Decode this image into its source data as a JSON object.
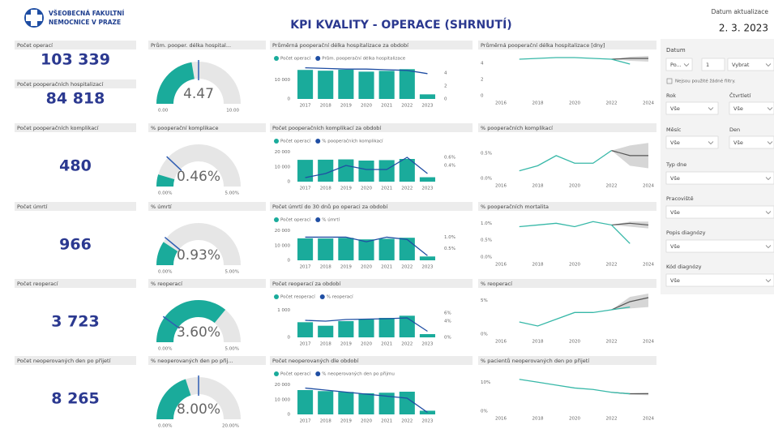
{
  "header": {
    "logo": [
      "VŠEOBECNÁ FAKULTNÍ",
      "NEMOCNICE V PRAZE"
    ],
    "title": "KPI KVALITY - OPERACE (SHRNUTÍ)",
    "update_label": "Datum aktualizace",
    "update_date": "2. 3. 2023"
  },
  "rows": [
    {
      "cards": [
        {
          "label": "Počet operací",
          "value": "103 339"
        },
        {
          "label": "Počet pooperačních hospitalizací",
          "value": "84 818"
        }
      ],
      "gauge": {
        "type": "gauge",
        "title": "Prům. pooper. délka hospital...",
        "value": 4.47,
        "value_label": "4.47",
        "target": 5,
        "min": {
          "value": 0,
          "label": "0.00"
        },
        "max": {
          "value": 10,
          "label": "10.00"
        },
        "color": "#1aab9b",
        "target_color": "#2f5db3"
      },
      "combo": {
        "type": "bar_line",
        "title": "Průměrná pooperační délka hospitalizace za období",
        "categories": [
          "2017",
          "2018",
          "2019",
          "2020",
          "2021",
          "2022",
          "2023"
        ],
        "series": [
          {
            "name": "Počet operací",
            "color": "#1aab9b",
            "values": [
              15200,
              14800,
              15300,
              14300,
              14700,
              15600,
              2400
            ]
          },
          {
            "name": "Prům. pooperační délka hospitalizace",
            "color": "#1f4ea3",
            "axis": "y2",
            "values": [
              4.8,
              4.7,
              4.6,
              4.6,
              4.5,
              4.4,
              3.9
            ]
          }
        ],
        "ylim": [
          0,
          17000
        ],
        "yticks": [
          0,
          {
            "value": 10000,
            "label": "10 000"
          }
        ],
        "y2lim": [
          0,
          5
        ],
        "y2ticks": [
          0,
          2,
          4
        ]
      },
      "trend": {
        "type": "line",
        "title": "Průměrná pooperační délka hospitalizace [dny]",
        "xlim": [
          2016,
          2024
        ],
        "xticks": [
          2016,
          2018,
          2020,
          2022,
          2024
        ],
        "ylim": [
          0,
          5
        ],
        "yticks": [
          0,
          2,
          4
        ],
        "color": "#37b8a8",
        "x": [
          2017,
          2018,
          2019,
          2020,
          2021,
          2022,
          2023
        ],
        "values": [
          4.5,
          4.6,
          4.7,
          4.7,
          4.6,
          4.5,
          3.9
        ],
        "forecast": {
          "color": "#555555",
          "x": [
            2022,
            2023,
            2024
          ],
          "values": [
            4.5,
            4.6,
            4.6
          ],
          "lower": [
            4.5,
            4.3,
            4.2
          ],
          "upper": [
            4.5,
            4.8,
            4.9
          ]
        }
      }
    },
    {
      "cards": [
        {
          "label": "Počet pooperačních komplikací",
          "value": "480"
        }
      ],
      "gauge": {
        "type": "gauge",
        "title": "% pooperační komplikace",
        "value": 0.46,
        "value_label": "0.46%",
        "target": 1.2,
        "min": {
          "value": 0,
          "label": "0.00%"
        },
        "max": {
          "value": 5,
          "label": "5.00%"
        },
        "color": "#1aab9b",
        "target_color": "#2f5db3"
      },
      "combo": {
        "type": "bar_line",
        "title": "Počet pooperačních komplikací za období",
        "categories": [
          "2017",
          "2018",
          "2019",
          "2020",
          "2021",
          "2022",
          "2023"
        ],
        "series": [
          {
            "name": "Počet operací",
            "color": "#1aab9b",
            "values": [
              14800,
              14900,
              15100,
              14300,
              14600,
              15400,
              3000
            ]
          },
          {
            "name": "% pooperačních komplikací",
            "color": "#1f4ea3",
            "axis": "y2",
            "values": [
              0.1,
              0.2,
              0.4,
              0.3,
              0.3,
              0.6,
              0.2
            ]
          }
        ],
        "ylim": [
          0,
          22000
        ],
        "yticks": [
          0,
          {
            "value": 10000,
            "label": "10 000"
          },
          {
            "value": 20000,
            "label": "20 000"
          }
        ],
        "y2lim": [
          0,
          0.8
        ],
        "y2ticks": [
          {
            "value": 0.4,
            "label": "0.4%"
          },
          {
            "value": 0.6,
            "label": "0.6%"
          }
        ]
      },
      "trend": {
        "type": "line",
        "title": "% pooperačních komplikací",
        "xlim": [
          2016,
          2024
        ],
        "xticks": [
          2016,
          2018,
          2020,
          2022,
          2024
        ],
        "ylim": [
          0,
          0.8
        ],
        "yticks": [
          {
            "value": 0,
            "label": "0.0%"
          },
          {
            "value": 0.5,
            "label": "0.5%"
          }
        ],
        "color": "#37b8a8",
        "x": [
          2017,
          2018,
          2019,
          2020,
          2021,
          2022
        ],
        "values": [
          0.15,
          0.25,
          0.45,
          0.3,
          0.3,
          0.55
        ],
        "forecast": {
          "color": "#555555",
          "x": [
            2022,
            2023,
            2024
          ],
          "values": [
            0.55,
            0.45,
            0.45
          ],
          "lower": [
            0.55,
            0.25,
            0.2
          ],
          "upper": [
            0.55,
            0.65,
            0.7
          ]
        }
      }
    },
    {
      "cards": [
        {
          "label": "Počet úmrtí",
          "value": "966"
        }
      ],
      "gauge": {
        "type": "gauge",
        "title": "% úmrtí",
        "value": 0.93,
        "value_label": "0.93%",
        "target": 1.1,
        "min": {
          "value": 0,
          "label": "0.00%"
        },
        "max": {
          "value": 5,
          "label": "5.00%"
        },
        "color": "#1aab9b",
        "target_color": "#2f5db3"
      },
      "combo": {
        "type": "bar_line",
        "title": "Počet úmrtí do 30 dnů po operaci za období",
        "categories": [
          "2017",
          "2018",
          "2019",
          "2020",
          "2021",
          "2022",
          "2023"
        ],
        "series": [
          {
            "name": "Počet operací",
            "color": "#1aab9b",
            "values": [
              14900,
              14800,
              15200,
              14200,
              14600,
              15300,
              2600
            ]
          },
          {
            "name": "% úmrtí",
            "color": "#1f4ea3",
            "axis": "y2",
            "values": [
              1.0,
              1.0,
              1.0,
              0.8,
              1.0,
              0.9,
              0.2
            ]
          }
        ],
        "ylim": [
          0,
          22000
        ],
        "yticks": [
          0,
          {
            "value": 10000,
            "label": "10 000"
          },
          {
            "value": 20000,
            "label": "20 000"
          }
        ],
        "y2lim": [
          0,
          1.4
        ],
        "y2ticks": [
          {
            "value": 0.5,
            "label": "0.5%"
          },
          {
            "value": 1,
            "label": "1.0%"
          }
        ]
      },
      "trend": {
        "type": "line",
        "title": "% pooperačních mortalita",
        "xlim": [
          2016,
          2024
        ],
        "xticks": [
          2016,
          2018,
          2020,
          2022,
          2024
        ],
        "ylim": [
          0,
          1.2
        ],
        "yticks": [
          {
            "value": 0,
            "label": "0.0%"
          },
          {
            "value": 0.5,
            "label": "0.5%"
          },
          {
            "value": 1,
            "label": "1.0%"
          }
        ],
        "color": "#37b8a8",
        "x": [
          2017,
          2018,
          2019,
          2020,
          2021,
          2022,
          2023
        ],
        "values": [
          0.9,
          0.95,
          1.0,
          0.9,
          1.05,
          0.95,
          0.4
        ],
        "forecast": {
          "color": "#555555",
          "x": [
            2022,
            2023,
            2024
          ],
          "values": [
            0.95,
            1.0,
            0.95
          ],
          "lower": [
            0.95,
            0.9,
            0.85
          ],
          "upper": [
            0.95,
            1.05,
            1.05
          ]
        }
      }
    },
    {
      "cards": [
        {
          "label": "Počet reoperací",
          "value": "3 723"
        }
      ],
      "gauge": {
        "type": "gauge",
        "title": "% reoperací",
        "value": 3.6,
        "value_label": "3.60%",
        "target": 1,
        "min": {
          "value": 0,
          "label": "0.00%"
        },
        "max": {
          "value": 5,
          "label": "5.00%"
        },
        "color": "#1aab9b",
        "target_color": "#2f5db3"
      },
      "combo": {
        "type": "bar_line",
        "title": "Počet reoperací za období",
        "categories": [
          "2017",
          "2018",
          "2019",
          "2020",
          "2021",
          "2022",
          "2023"
        ],
        "series": [
          {
            "name": "Počet reoperací",
            "color": "#1aab9b",
            "values": [
              560,
              430,
              600,
              660,
              720,
              800,
              120
            ]
          },
          {
            "name": "% reoperací",
            "color": "#1f4ea3",
            "axis": "y2",
            "values": [
              4.2,
              4.0,
              4.4,
              4.5,
              4.6,
              4.8,
              1.5
            ]
          }
        ],
        "ylim": [
          0,
          1200
        ],
        "yticks": [
          0,
          {
            "value": 1000,
            "label": "1 000"
          }
        ],
        "y2lim": [
          0,
          8
        ],
        "y2ticks": [
          {
            "value": 0,
            "label": "0%"
          },
          {
            "value": 4,
            "label": "4%"
          },
          {
            "value": 6,
            "label": "6%"
          }
        ]
      },
      "trend": {
        "type": "line",
        "title": "% reoperací",
        "xlim": [
          2016,
          2024
        ],
        "xticks": [
          2016,
          2018,
          2020,
          2022,
          2024
        ],
        "ylim": [
          0,
          6
        ],
        "yticks": [
          {
            "value": 0,
            "label": "0%"
          },
          {
            "value": 5,
            "label": "5%"
          }
        ],
        "color": "#37b8a8",
        "x": [
          2017,
          2018,
          2019,
          2020,
          2021,
          2022,
          2023
        ],
        "values": [
          1.8,
          1.2,
          2.2,
          3.2,
          3.2,
          3.6,
          4.0
        ],
        "forecast": {
          "color": "#555555",
          "x": [
            2022,
            2023,
            2024
          ],
          "values": [
            3.6,
            4.8,
            5.4
          ],
          "lower": [
            3.6,
            3.8,
            4.0
          ],
          "upper": [
            3.6,
            5.5,
            6.0
          ]
        }
      }
    },
    {
      "cards": [
        {
          "label": "Počet neoperovaných den po přijetí",
          "value": "8 265"
        }
      ],
      "gauge": {
        "type": "gauge",
        "title": "% neoperovaných den po přij...",
        "value": 8,
        "value_label": "8.00%",
        "target": 10,
        "min": {
          "value": 0,
          "label": "0.00%"
        },
        "max": {
          "value": 20,
          "label": "20.00%"
        },
        "color": "#1aab9b",
        "target_color": "#2f5db3"
      },
      "combo": {
        "type": "bar_line",
        "title": "Počet neoperovaných dle období",
        "categories": [
          "2017",
          "2018",
          "2019",
          "2020",
          "2021",
          "2022",
          "2023"
        ],
        "series": [
          {
            "name": "Počet operací",
            "color": "#1aab9b",
            "values": [
              16500,
              15800,
              15200,
              14300,
              14700,
              15400,
              2500
            ]
          },
          {
            "name": "% neoperovaných den po přijmu",
            "color": "#1f4ea3",
            "axis": "y2",
            "values": [
              13,
              12,
              11,
              10,
              9,
              8,
              1
            ]
          }
        ],
        "ylim": [
          0,
          22000
        ],
        "yticks": [
          0,
          {
            "value": 10000,
            "label": "10 000"
          },
          {
            "value": 20000,
            "label": "20 000"
          }
        ],
        "y2lim": [
          0,
          16
        ]
      },
      "trend": {
        "type": "line",
        "title": "% pacientů neoperovaných den po přijetí",
        "xlim": [
          2016,
          2024
        ],
        "xticks": [
          2016,
          2018,
          2020,
          2022,
          2024
        ],
        "ylim": [
          0,
          14
        ],
        "yticks": [
          {
            "value": 0,
            "label": "0%"
          },
          {
            "value": 10,
            "label": "10%"
          }
        ],
        "color": "#37b8a8",
        "x": [
          2017,
          2018,
          2019,
          2020,
          2021,
          2022,
          2023
        ],
        "values": [
          11,
          10,
          9,
          8,
          7.5,
          6.5,
          6
        ],
        "forecast": {
          "color": "#555555",
          "x": [
            2022,
            2023,
            2024
          ],
          "values": [
            6.5,
            6,
            6
          ],
          "lower": [
            6.5,
            5.7,
            5.5
          ],
          "upper": [
            6.5,
            6.3,
            6.5
          ]
        }
      }
    }
  ],
  "filters": {
    "title": "Datum",
    "date_controls": [
      "Po...",
      "1",
      "Vybrat"
    ],
    "note": "Nejsou použité žádné filtry.",
    "pairs": [
      {
        "label": "Rok",
        "value": "Vše"
      },
      {
        "label": "Čtvrtletí",
        "value": "Vše"
      },
      {
        "label": "Měsíc",
        "value": "Vše"
      },
      {
        "label": "Den",
        "value": "Vše"
      }
    ],
    "singles": [
      {
        "label": "Typ dne",
        "value": "Vše"
      },
      {
        "label": "Pracoviště",
        "value": "Vše"
      },
      {
        "label": "Popis diagnózy",
        "value": "Vše"
      },
      {
        "label": "Kód diagnózy",
        "value": "Vše"
      }
    ]
  }
}
